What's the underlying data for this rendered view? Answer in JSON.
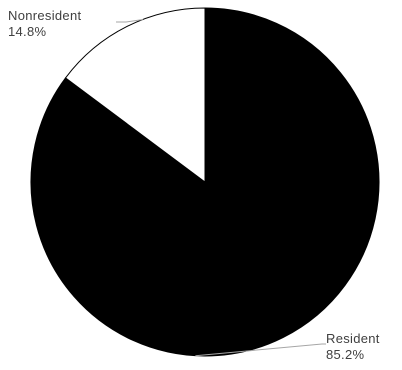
{
  "chart_data": {
    "type": "pie",
    "slices": [
      {
        "label": "Resident",
        "value": 85.2,
        "display": "85.2%",
        "color": "#000000"
      },
      {
        "label": "Nonresident",
        "value": 14.8,
        "display": "14.8%",
        "color": "#ffffff"
      }
    ],
    "start_angle_deg": 0,
    "direction": "clockwise",
    "legend": "none",
    "label_placement": "outside-with-leader-lines"
  }
}
